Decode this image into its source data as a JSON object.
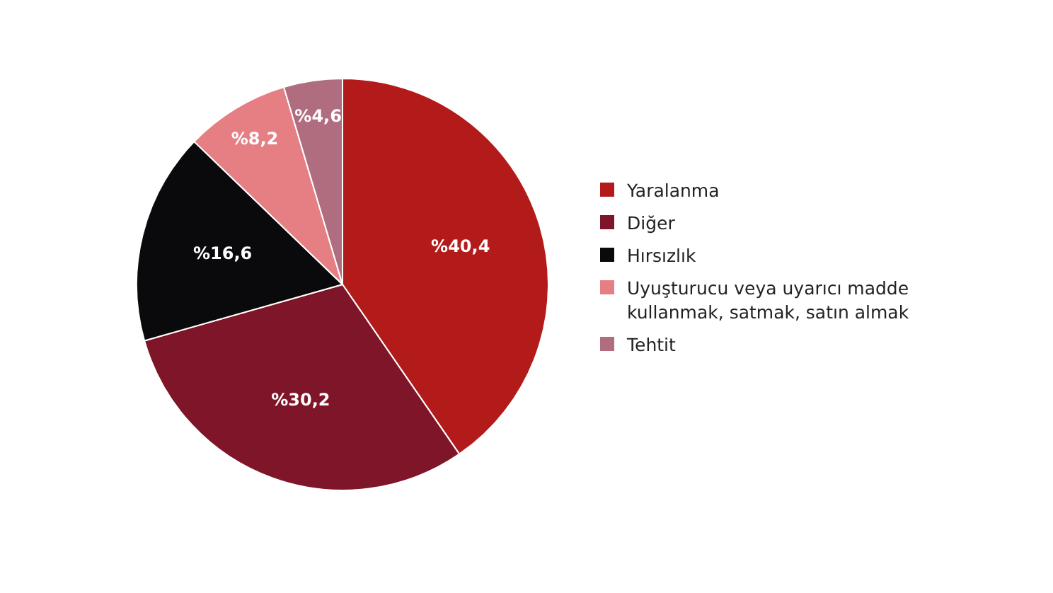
{
  "chart_data": {
    "type": "pie",
    "categories": [
      "Yaralanma",
      "Diğer",
      "Hırsızlık",
      "Uyuşturucu veya uyarıcı madde kullanmak, satmak, satın almak",
      "Tehtit"
    ],
    "values": [
      40.4,
      30.2,
      16.6,
      8.2,
      4.6
    ],
    "colors": [
      "#b31b1b",
      "#7f1528",
      "#0a0a0c",
      "#e57f84",
      "#b06d80"
    ],
    "value_labels": [
      "%40,4",
      "%30,2",
      "%16,6",
      "%8,2",
      "%4,6"
    ],
    "legend": "right"
  }
}
